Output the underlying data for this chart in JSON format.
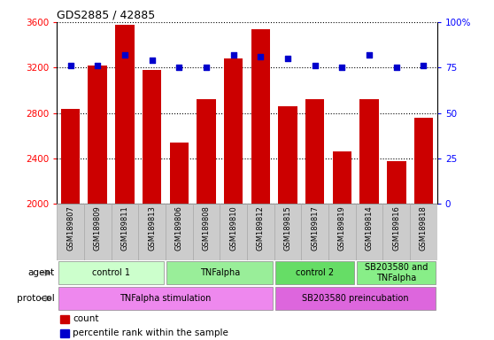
{
  "title": "GDS2885 / 42885",
  "samples": [
    "GSM189807",
    "GSM189809",
    "GSM189811",
    "GSM189813",
    "GSM189806",
    "GSM189808",
    "GSM189810",
    "GSM189812",
    "GSM189815",
    "GSM189817",
    "GSM189819",
    "GSM189814",
    "GSM189816",
    "GSM189818"
  ],
  "counts": [
    2840,
    3220,
    3580,
    3180,
    2540,
    2920,
    3280,
    3540,
    2860,
    2920,
    2460,
    2920,
    2380,
    2760
  ],
  "percentiles": [
    76,
    76,
    82,
    79,
    75,
    75,
    82,
    81,
    80,
    76,
    75,
    82,
    75,
    76
  ],
  "ylim_left": [
    2000,
    3600
  ],
  "ylim_right": [
    0,
    100
  ],
  "yticks_left": [
    2000,
    2400,
    2800,
    3200,
    3600
  ],
  "yticks_right": [
    0,
    25,
    50,
    75,
    100
  ],
  "ytick_labels_right": [
    "0",
    "25",
    "50",
    "75",
    "100%"
  ],
  "bar_color": "#cc0000",
  "dot_color": "#0000cc",
  "agent_groups": [
    {
      "label": "control 1",
      "start": 0,
      "end": 3,
      "color": "#ccffcc"
    },
    {
      "label": "TNFalpha",
      "start": 4,
      "end": 7,
      "color": "#99ee99"
    },
    {
      "label": "control 2",
      "start": 8,
      "end": 10,
      "color": "#66dd66"
    },
    {
      "label": "SB203580 and\nTNFalpha",
      "start": 11,
      "end": 13,
      "color": "#88ee88"
    }
  ],
  "protocol_groups": [
    {
      "label": "TNFalpha stimulation",
      "start": 0,
      "end": 7,
      "color": "#ee88ee"
    },
    {
      "label": "SB203580 preincubation",
      "start": 8,
      "end": 13,
      "color": "#dd66dd"
    }
  ],
  "agent_label": "agent",
  "protocol_label": "protocol",
  "legend_count_label": "count",
  "legend_pct_label": "percentile rank within the sample",
  "background_color": "#ffffff",
  "xtick_bg": "#cccccc",
  "xtick_border": "#aaaaaa"
}
